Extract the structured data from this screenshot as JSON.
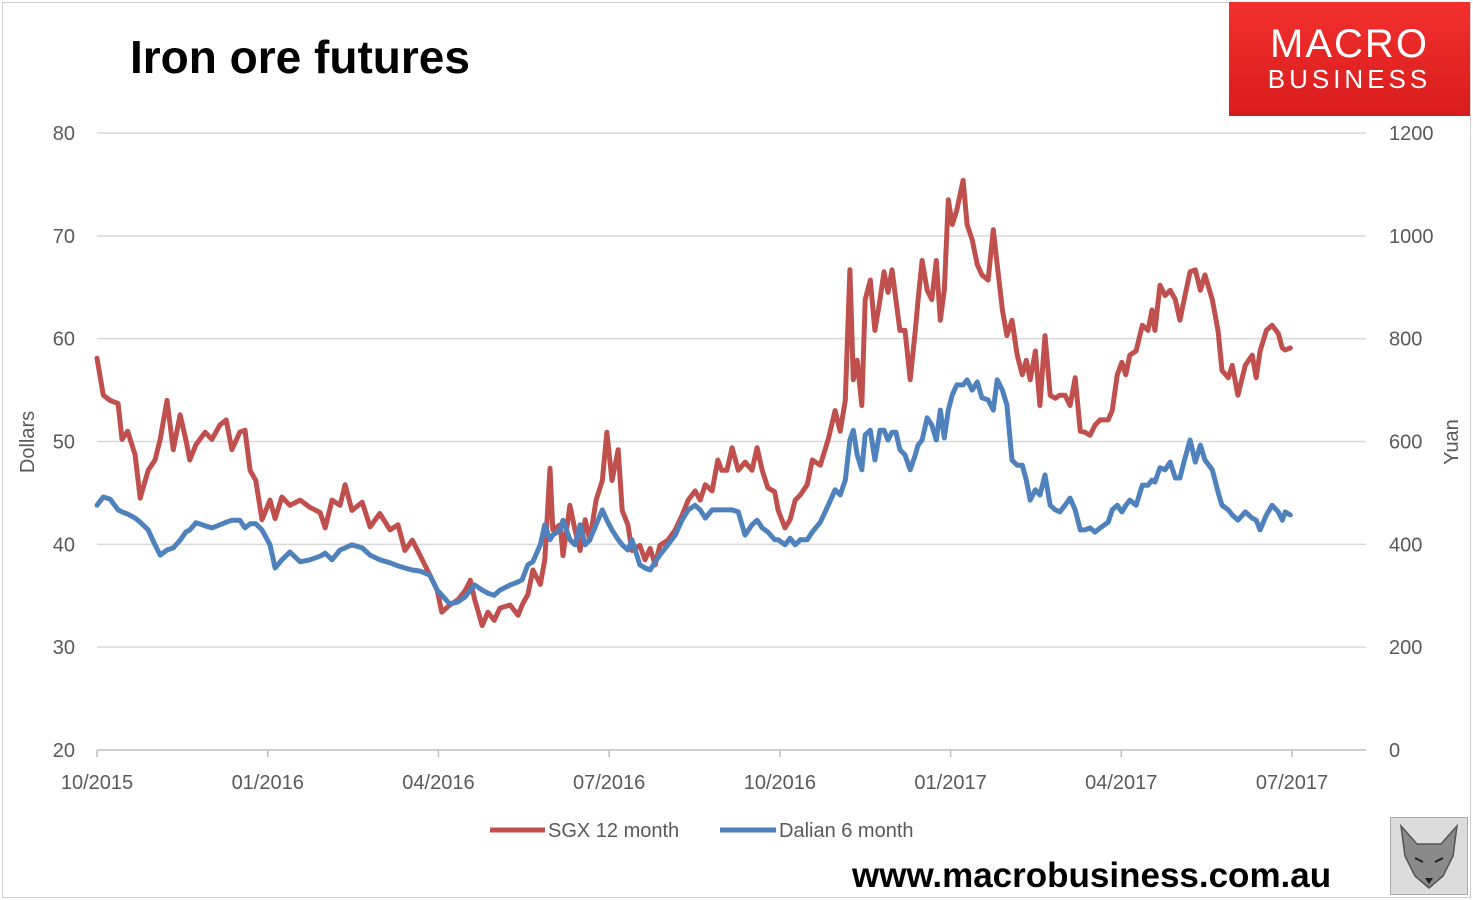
{
  "title": "Iron ore futures",
  "logo": {
    "line1": "MACRO",
    "line2": "BUSINESS"
  },
  "website": "www.macrobusiness.com.au",
  "chart_data": {
    "type": "line",
    "title": "Iron ore futures",
    "ylabel": "Dollars",
    "y2label": "Yuan",
    "ylim": [
      20,
      80
    ],
    "y2lim": [
      0,
      1200
    ],
    "yticks": [
      "20",
      "30",
      "40",
      "50",
      "60",
      "70",
      "80"
    ],
    "y2ticks": [
      "0",
      "200",
      "400",
      "600",
      "800",
      "1000",
      "1200"
    ],
    "xunit": "months since 10/2015",
    "xlim": [
      0,
      21
    ],
    "xticks": [
      {
        "x": 0,
        "label": "10/2015"
      },
      {
        "x": 3,
        "label": "01/2016"
      },
      {
        "x": 6,
        "label": "04/2016"
      },
      {
        "x": 9,
        "label": "07/2016"
      },
      {
        "x": 12,
        "label": "10/2016"
      },
      {
        "x": 15,
        "label": "01/2017"
      },
      {
        "x": 18,
        "label": "04/2017"
      },
      {
        "x": 21,
        "label": "07/2017"
      }
    ],
    "grid": true,
    "legend_position": "bottom",
    "colors": {
      "sgx": "#C0504D",
      "dalian": "#4F81BD"
    },
    "x": [
      0,
      0.11,
      0.23,
      0.37,
      0.44,
      0.54,
      0.67,
      0.76,
      0.9,
      1.02,
      1.11,
      1.23,
      1.34,
      1.46,
      1.56,
      1.63,
      1.74,
      1.9,
      2.02,
      2.16,
      2.27,
      2.37,
      2.51,
      2.6,
      2.69,
      2.79,
      2.9,
      3.04,
      3.13,
      3.25,
      3.39,
      3.57,
      3.74,
      3.92,
      4.01,
      4.13,
      4.27,
      4.36,
      4.48,
      4.66,
      4.8,
      4.97,
      5.15,
      5.29,
      5.41,
      5.54,
      5.68,
      5.85,
      5.98,
      6.06,
      6.2,
      6.34,
      6.47,
      6.56,
      6.64,
      6.77,
      6.87,
      6.98,
      7.08,
      7.26,
      7.4,
      7.47,
      7.57,
      7.66,
      7.79,
      7.87,
      7.96,
      8.01,
      8.14,
      8.19,
      8.31,
      8.4,
      8.49,
      8.58,
      8.66,
      8.77,
      8.88,
      8.96,
      9.05,
      9.16,
      9.23,
      9.33,
      9.4,
      9.54,
      9.63,
      9.72,
      9.81,
      9.89,
      10.03,
      10.16,
      10.28,
      10.39,
      10.51,
      10.6,
      10.69,
      10.81,
      10.91,
      10.98,
      11.07,
      11.16,
      11.27,
      11.39,
      11.51,
      11.6,
      11.69,
      11.79,
      11.91,
      11.97,
      12.09,
      12.18,
      12.27,
      12.36,
      12.48,
      12.57,
      12.71,
      12.85,
      12.97,
      13.06,
      13.15,
      13.23,
      13.29,
      13.36,
      13.44,
      13.5,
      13.59,
      13.67,
      13.76,
      13.83,
      13.9,
      13.97,
      14.04,
      14.11,
      14.2,
      14.29,
      14.38,
      14.43,
      14.5,
      14.59,
      14.67,
      14.75,
      14.82,
      14.89,
      14.96,
      15.03,
      15.11,
      15.22,
      15.29,
      15.38,
      15.47,
      15.55,
      15.66,
      15.75,
      15.82,
      15.91,
      15.99,
      16.08,
      16.17,
      16.26,
      16.33,
      16.4,
      16.49,
      16.57,
      16.66,
      16.75,
      16.84,
      16.92,
      17.01,
      17.1,
      17.19,
      17.28,
      17.36,
      17.45,
      17.54,
      17.63,
      17.77,
      17.84,
      17.93,
      18.01,
      18.08,
      18.15,
      18.26,
      18.37,
      18.47,
      18.54,
      18.59,
      18.68,
      18.77,
      18.86,
      18.95,
      19.03,
      19.12,
      19.21,
      19.3,
      19.39,
      19.47,
      19.6,
      19.7,
      19.77,
      19.88,
      19.95,
      20.05,
      20.18,
      20.3,
      20.37,
      20.44,
      20.55,
      20.65,
      20.76,
      20.83,
      20.88,
      20.97
    ],
    "series": [
      {
        "name": "SGX 12 month",
        "axis": "left",
        "values": [
          58.1,
          54.5,
          54,
          53.7,
          50.2,
          51,
          48.7,
          44.5,
          47.2,
          48.2,
          50.2,
          54,
          49.2,
          52.6,
          50.2,
          48.2,
          49.7,
          50.9,
          50.2,
          51.6,
          52.1,
          49.2,
          50.9,
          51.1,
          47.2,
          46.2,
          42.4,
          44.3,
          42.5,
          44.6,
          43.8,
          44.3,
          43.6,
          43.1,
          41.6,
          44.3,
          43.8,
          45.8,
          43.3,
          44.1,
          41.7,
          43,
          41.4,
          41.9,
          39.4,
          40.4,
          38.9,
          37,
          35.5,
          33.4,
          34.1,
          34.6,
          35.5,
          36.5,
          34.6,
          32.1,
          33.4,
          32.6,
          33.8,
          34.1,
          33.1,
          34.1,
          35.1,
          37.5,
          36.1,
          38.5,
          47.4,
          41.4,
          41.9,
          38.9,
          43.8,
          41.4,
          39.4,
          42.4,
          40.4,
          44.3,
          46.2,
          50.9,
          46.2,
          49.2,
          43.3,
          41.9,
          39.4,
          39.9,
          38.5,
          39.6,
          38,
          39.9,
          40.4,
          41.4,
          42.8,
          44.3,
          45.2,
          44.3,
          45.8,
          45.2,
          48.2,
          47.2,
          47.2,
          49.4,
          47.2,
          48,
          47.2,
          49.4,
          47.2,
          45.5,
          45.1,
          43.3,
          41.6,
          42.4,
          44.3,
          44.8,
          45.8,
          48.2,
          47.7,
          50.2,
          53,
          51,
          54,
          66.7,
          56,
          57.9,
          53.5,
          63.8,
          65.7,
          60.8,
          63.8,
          66.5,
          64.5,
          66.7,
          63.8,
          60.8,
          60.8,
          56,
          60.8,
          63.8,
          67.6,
          64.7,
          63.8,
          67.6,
          61.8,
          64.7,
          73.5,
          71.1,
          72.5,
          75.4,
          71.1,
          69.6,
          67.2,
          66.2,
          65.7,
          70.6,
          67.2,
          62.8,
          60.3,
          61.8,
          58.4,
          56.5,
          57.9,
          56,
          58.8,
          53.5,
          60.3,
          54.5,
          54.2,
          54.5,
          54.5,
          53.5,
          56.2,
          51,
          50.9,
          50.6,
          51.6,
          52.1,
          52.1,
          53,
          56.5,
          57.7,
          56.5,
          58.4,
          58.8,
          61.3,
          60.8,
          62.8,
          60.8,
          65.2,
          64.2,
          64.7,
          63.8,
          61.8,
          64.2,
          66.5,
          66.7,
          64.7,
          66.2,
          63.8,
          60.8,
          56.9,
          56.2,
          57.4,
          54.5,
          57.4,
          58.4,
          56.2,
          58.8,
          60.8,
          61.3,
          60.5,
          59.1,
          58.9,
          59.1
        ]
      },
      {
        "name": "Dalian 6 month",
        "axis": "right",
        "values": [
          476,
          492,
          488,
          467,
          463,
          459,
          451,
          443,
          428,
          399,
          379,
          389,
          393,
          408,
          424,
          428,
          442,
          436,
          432,
          438,
          443,
          447,
          447,
          432,
          440,
          440,
          428,
          399,
          354,
          370,
          385,
          366,
          370,
          377,
          383,
          370,
          389,
          393,
          399,
          393,
          379,
          370,
          364,
          358,
          354,
          350,
          348,
          340,
          311,
          301,
          284,
          288,
          298,
          311,
          321,
          311,
          305,
          301,
          311,
          321,
          327,
          331,
          360,
          366,
          399,
          438,
          409,
          418,
          428,
          447,
          409,
          399,
          438,
          399,
          409,
          438,
          467,
          447,
          428,
          409,
          399,
          389,
          409,
          360,
          354,
          350,
          366,
          379,
          399,
          418,
          447,
          467,
          476,
          467,
          451,
          467,
          467,
          467,
          467,
          467,
          463,
          418,
          438,
          447,
          432,
          424,
          409,
          409,
          399,
          412,
          399,
          409,
          409,
          424,
          443,
          476,
          506,
          496,
          525,
          603,
          622,
          574,
          545,
          613,
          622,
          564,
          622,
          622,
          603,
          618,
          618,
          584,
          574,
          545,
          574,
          593,
          603,
          646,
          632,
          603,
          661,
          607,
          661,
          691,
          710,
          710,
          720,
          700,
          716,
          685,
          681,
          661,
          720,
          700,
          671,
          564,
          554,
          554,
          525,
          486,
          506,
          496,
          535,
          476,
          467,
          463,
          476,
          490,
          467,
          428,
          428,
          432,
          424,
          432,
          443,
          467,
          476,
          463,
          476,
          486,
          476,
          515,
          515,
          525,
          521,
          549,
          545,
          560,
          529,
          529,
          568,
          603,
          560,
          593,
          564,
          545,
          502,
          476,
          467,
          457,
          447,
          463,
          451,
          447,
          428,
          457,
          476,
          463,
          447,
          463,
          457
        ]
      }
    ]
  }
}
